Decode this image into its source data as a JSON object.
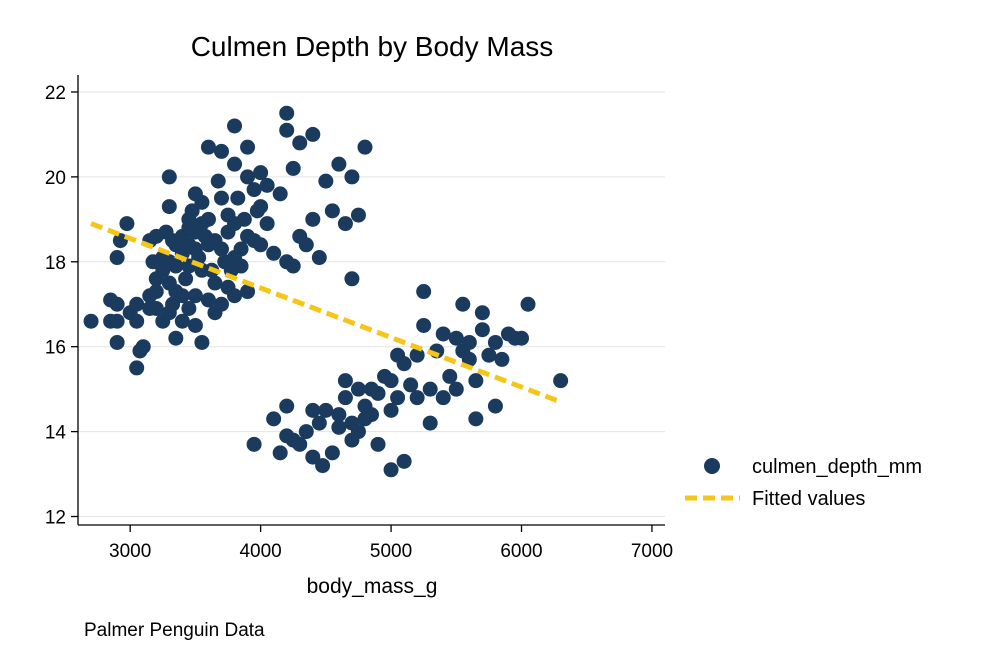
{
  "chart_data": {
    "type": "scatter",
    "title": "Culmen Depth by Body Mass",
    "xlabel": "body_mass_g",
    "ylabel": "",
    "note": "Palmer Penguin Data",
    "xlim": [
      2600,
      7100
    ],
    "ylim": [
      11.8,
      22.4
    ],
    "xticks": [
      3000,
      4000,
      5000,
      6000,
      7000
    ],
    "yticks": [
      12,
      14,
      16,
      18,
      20,
      22
    ],
    "grid": true,
    "legend_position": "right",
    "colors": {
      "points": "#1a3a5e",
      "fit": "#f5c518"
    },
    "series": [
      {
        "name": "culmen_depth_mm",
        "kind": "scatter",
        "points": [
          [
            2700,
            16.6
          ],
          [
            2850,
            17.1
          ],
          [
            2850,
            16.6
          ],
          [
            2900,
            16.6
          ],
          [
            2900,
            17.0
          ],
          [
            2900,
            18.1
          ],
          [
            2900,
            16.1
          ],
          [
            2925,
            18.5
          ],
          [
            2975,
            18.9
          ],
          [
            3000,
            16.8
          ],
          [
            3050,
            17.0
          ],
          [
            3050,
            15.5
          ],
          [
            3050,
            16.6
          ],
          [
            3075,
            15.9
          ],
          [
            3100,
            16.0
          ],
          [
            3150,
            18.5
          ],
          [
            3150,
            17.2
          ],
          [
            3150,
            16.9
          ],
          [
            3175,
            18.0
          ],
          [
            3200,
            18.6
          ],
          [
            3200,
            17.6
          ],
          [
            3200,
            17.3
          ],
          [
            3200,
            16.9
          ],
          [
            3250,
            18.1
          ],
          [
            3250,
            17.8
          ],
          [
            3250,
            16.6
          ],
          [
            3275,
            18.7
          ],
          [
            3300,
            19.3
          ],
          [
            3300,
            18.0
          ],
          [
            3300,
            17.5
          ],
          [
            3300,
            16.8
          ],
          [
            3300,
            20.0
          ],
          [
            3325,
            17.0
          ],
          [
            3325,
            18.5
          ],
          [
            3350,
            17.3
          ],
          [
            3350,
            18.4
          ],
          [
            3350,
            16.2
          ],
          [
            3350,
            17.9
          ],
          [
            3400,
            18.6
          ],
          [
            3400,
            17.2
          ],
          [
            3400,
            16.6
          ],
          [
            3400,
            18.2
          ],
          [
            3425,
            17.6
          ],
          [
            3450,
            19.0
          ],
          [
            3450,
            18.4
          ],
          [
            3450,
            16.9
          ],
          [
            3450,
            17.9
          ],
          [
            3450,
            18.8
          ],
          [
            3475,
            19.2
          ],
          [
            3500,
            18.7
          ],
          [
            3500,
            17.2
          ],
          [
            3500,
            18.3
          ],
          [
            3500,
            19.6
          ],
          [
            3500,
            16.5
          ],
          [
            3525,
            18.1
          ],
          [
            3550,
            18.9
          ],
          [
            3550,
            17.8
          ],
          [
            3550,
            19.4
          ],
          [
            3550,
            16.1
          ],
          [
            3575,
            18.6
          ],
          [
            3600,
            18.4
          ],
          [
            3600,
            19.0
          ],
          [
            3600,
            17.1
          ],
          [
            3600,
            20.7
          ],
          [
            3625,
            17.8
          ],
          [
            3650,
            18.5
          ],
          [
            3650,
            17.5
          ],
          [
            3650,
            16.8
          ],
          [
            3675,
            19.9
          ],
          [
            3700,
            18.3
          ],
          [
            3700,
            17.0
          ],
          [
            3700,
            20.6
          ],
          [
            3700,
            19.5
          ],
          [
            3725,
            18.0
          ],
          [
            3750,
            18.7
          ],
          [
            3750,
            17.4
          ],
          [
            3750,
            19.1
          ],
          [
            3775,
            17.8
          ],
          [
            3800,
            18.9
          ],
          [
            3800,
            17.2
          ],
          [
            3800,
            20.3
          ],
          [
            3800,
            21.2
          ],
          [
            3800,
            18.1
          ],
          [
            3825,
            19.5
          ],
          [
            3850,
            18.3
          ],
          [
            3850,
            17.9
          ],
          [
            3875,
            19.0
          ],
          [
            3900,
            18.6
          ],
          [
            3900,
            20.0
          ],
          [
            3900,
            17.3
          ],
          [
            3900,
            20.7
          ],
          [
            3950,
            18.5
          ],
          [
            3950,
            19.7
          ],
          [
            3975,
            19.2
          ],
          [
            4000,
            19.3
          ],
          [
            4000,
            18.4
          ],
          [
            4000,
            20.1
          ],
          [
            4050,
            18.9
          ],
          [
            4050,
            19.8
          ],
          [
            4100,
            18.2
          ],
          [
            4150,
            19.6
          ],
          [
            4200,
            18.0
          ],
          [
            4200,
            21.1
          ],
          [
            4200,
            21.5
          ],
          [
            4250,
            20.2
          ],
          [
            4250,
            17.9
          ],
          [
            4300,
            18.6
          ],
          [
            4300,
            20.8
          ],
          [
            4350,
            18.4
          ],
          [
            4400,
            19.0
          ],
          [
            4400,
            21.0
          ],
          [
            4450,
            18.1
          ],
          [
            4500,
            19.9
          ],
          [
            4550,
            19.2
          ],
          [
            4600,
            20.3
          ],
          [
            4650,
            18.9
          ],
          [
            4700,
            20.0
          ],
          [
            4700,
            17.6
          ],
          [
            4750,
            19.1
          ],
          [
            4800,
            20.7
          ],
          [
            3950,
            13.7
          ],
          [
            4100,
            14.3
          ],
          [
            4150,
            13.5
          ],
          [
            4200,
            14.6
          ],
          [
            4200,
            13.9
          ],
          [
            4250,
            13.8
          ],
          [
            4300,
            13.7
          ],
          [
            4350,
            14.0
          ],
          [
            4400,
            14.5
          ],
          [
            4400,
            13.4
          ],
          [
            4450,
            14.2
          ],
          [
            4475,
            13.2
          ],
          [
            4500,
            14.5
          ],
          [
            4550,
            13.5
          ],
          [
            4600,
            14.4
          ],
          [
            4600,
            14.1
          ],
          [
            4650,
            15.2
          ],
          [
            4650,
            14.8
          ],
          [
            4700,
            14.2
          ],
          [
            4700,
            13.8
          ],
          [
            4750,
            14.0
          ],
          [
            4750,
            15.0
          ],
          [
            4800,
            14.6
          ],
          [
            4800,
            14.3
          ],
          [
            4850,
            15.0
          ],
          [
            4850,
            14.4
          ],
          [
            4900,
            14.9
          ],
          [
            4900,
            13.7
          ],
          [
            4950,
            15.3
          ],
          [
            5000,
            15.2
          ],
          [
            5000,
            14.5
          ],
          [
            5000,
            13.1
          ],
          [
            5050,
            15.8
          ],
          [
            5050,
            14.8
          ],
          [
            5100,
            15.6
          ],
          [
            5100,
            13.3
          ],
          [
            5150,
            15.1
          ],
          [
            5200,
            14.8
          ],
          [
            5200,
            15.8
          ],
          [
            5250,
            16.5
          ],
          [
            5250,
            17.3
          ],
          [
            5300,
            15.0
          ],
          [
            5300,
            14.2
          ],
          [
            5350,
            15.9
          ],
          [
            5400,
            16.3
          ],
          [
            5400,
            14.8
          ],
          [
            5450,
            15.3
          ],
          [
            5500,
            16.2
          ],
          [
            5500,
            15.0
          ],
          [
            5550,
            15.9
          ],
          [
            5550,
            17.0
          ],
          [
            5600,
            15.7
          ],
          [
            5600,
            16.1
          ],
          [
            5650,
            15.2
          ],
          [
            5650,
            14.3
          ],
          [
            5700,
            16.4
          ],
          [
            5700,
            16.8
          ],
          [
            5750,
            15.8
          ],
          [
            5800,
            14.6
          ],
          [
            5800,
            16.1
          ],
          [
            5850,
            15.7
          ],
          [
            5900,
            16.3
          ],
          [
            5950,
            16.2
          ],
          [
            6000,
            16.2
          ],
          [
            6050,
            17.0
          ],
          [
            6300,
            15.2
          ]
        ]
      },
      {
        "name": "Fitted values",
        "kind": "line",
        "style": "dashed",
        "points": [
          [
            2700,
            18.9
          ],
          [
            6300,
            14.7
          ]
        ]
      }
    ]
  }
}
